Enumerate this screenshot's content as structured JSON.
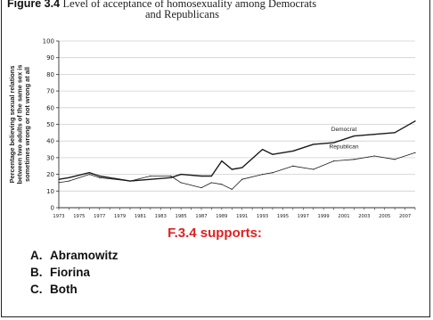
{
  "figure": {
    "number": "Figure 3.4",
    "title_line1": "Level of acceptance of homosexuality among Democrats",
    "title_line2": "and Republicans"
  },
  "question": {
    "prompt": "F.3.4 supports:",
    "options": [
      {
        "letter": "A.",
        "text": "Abramowitz"
      },
      {
        "letter": "B.",
        "text": "Fiorina"
      },
      {
        "letter": "C.",
        "text": "Both"
      }
    ]
  },
  "chart_data": {
    "type": "line",
    "title": "Level of acceptance of homosexuality among Democrats and Republicans",
    "xlabel": "",
    "ylabel": "Percentage believing sexual relations between two adults of the same sex is sometimes wrong or not wrong at all",
    "ylabel_lines": [
      "Percentage believing sexual relations",
      "between two adults of the same sex is",
      "sometimes wrong or not wrong at all"
    ],
    "ylim": [
      0,
      100
    ],
    "yticks": [
      0,
      10,
      20,
      30,
      40,
      50,
      60,
      70,
      80,
      90,
      100
    ],
    "xlim": [
      1973,
      2008
    ],
    "xtick_labels": [
      "1973",
      "1975",
      "1977",
      "1979",
      "1981",
      "1983",
      "1985",
      "1987",
      "1989",
      "1991",
      "1993",
      "1995",
      "1997",
      "1999",
      "2001",
      "2003",
      "2005",
      "2007"
    ],
    "grid": true,
    "series": [
      {
        "name": "Democrat",
        "color": "#1a1a1a",
        "x": [
          1973,
          1974,
          1976,
          1977,
          1980,
          1982,
          1984,
          1985,
          1987,
          1988,
          1989,
          1990,
          1991,
          1993,
          1994,
          1996,
          1998,
          2000,
          2002,
          2004,
          2006,
          2008
        ],
        "y": [
          17,
          18,
          21,
          19,
          16,
          17,
          18,
          20,
          19,
          19,
          28,
          23,
          24,
          35,
          32,
          34,
          38,
          39,
          43,
          44,
          45,
          52
        ]
      },
      {
        "name": "Republican",
        "color": "#1a1a1a",
        "x": [
          1973,
          1974,
          1976,
          1977,
          1980,
          1982,
          1984,
          1985,
          1987,
          1988,
          1989,
          1990,
          1991,
          1993,
          1994,
          1996,
          1998,
          2000,
          2002,
          2004,
          2006,
          2008
        ],
        "y": [
          15,
          16,
          20,
          18,
          16,
          19,
          19,
          15,
          12,
          15,
          14,
          11,
          17,
          20,
          21,
          25,
          23,
          28,
          29,
          31,
          29,
          33
        ]
      }
    ]
  }
}
